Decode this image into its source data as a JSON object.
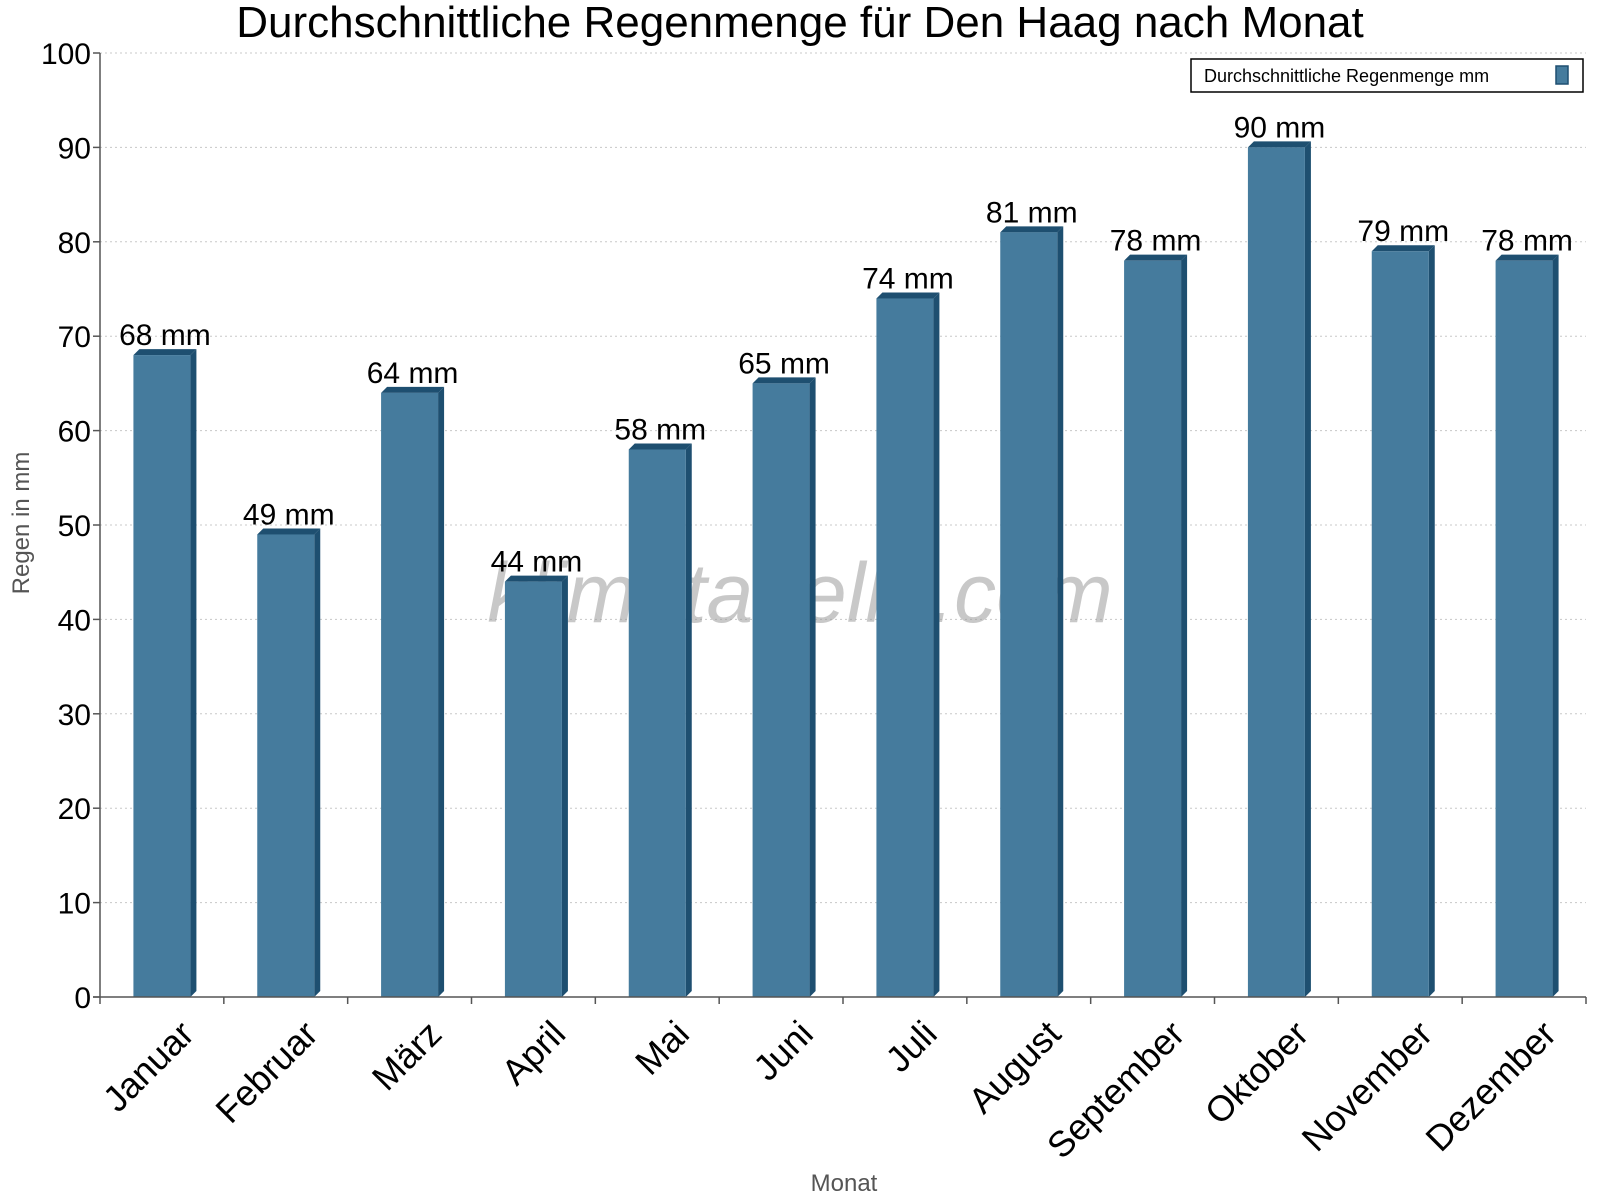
{
  "chart_data": {
    "type": "bar",
    "title": "Durchschnittliche Regenmenge für Den Haag nach Monat",
    "xlabel": "Monat",
    "ylabel": "Regen in mm",
    "ylim": [
      0,
      100
    ],
    "yticks": [
      0,
      10,
      20,
      30,
      40,
      50,
      60,
      70,
      80,
      90,
      100
    ],
    "grid": true,
    "legend_position": "top-right",
    "categories": [
      "Januar",
      "Februar",
      "März",
      "April",
      "Mai",
      "Juni",
      "Juli",
      "August",
      "September",
      "Oktober",
      "November",
      "Dezember"
    ],
    "series": [
      {
        "name": "Durchschnittliche Regenmenge mm",
        "values": [
          68,
          49,
          64,
          44,
          58,
          65,
          74,
          81,
          78,
          90,
          79,
          78
        ],
        "labels": [
          "68 mm",
          "49 mm",
          "64 mm",
          "44 mm",
          "58 mm",
          "65 mm",
          "74 mm",
          "81 mm",
          "78 mm",
          "90 mm",
          "79 mm",
          "78 mm"
        ]
      }
    ],
    "colors": {
      "bar": "#457b9d",
      "bar_side": "#1e4f70",
      "bar_top": "#1e4f70",
      "grid": "#c8c8c8",
      "axis": "#555555"
    },
    "watermark": "klimatabelle.com"
  }
}
